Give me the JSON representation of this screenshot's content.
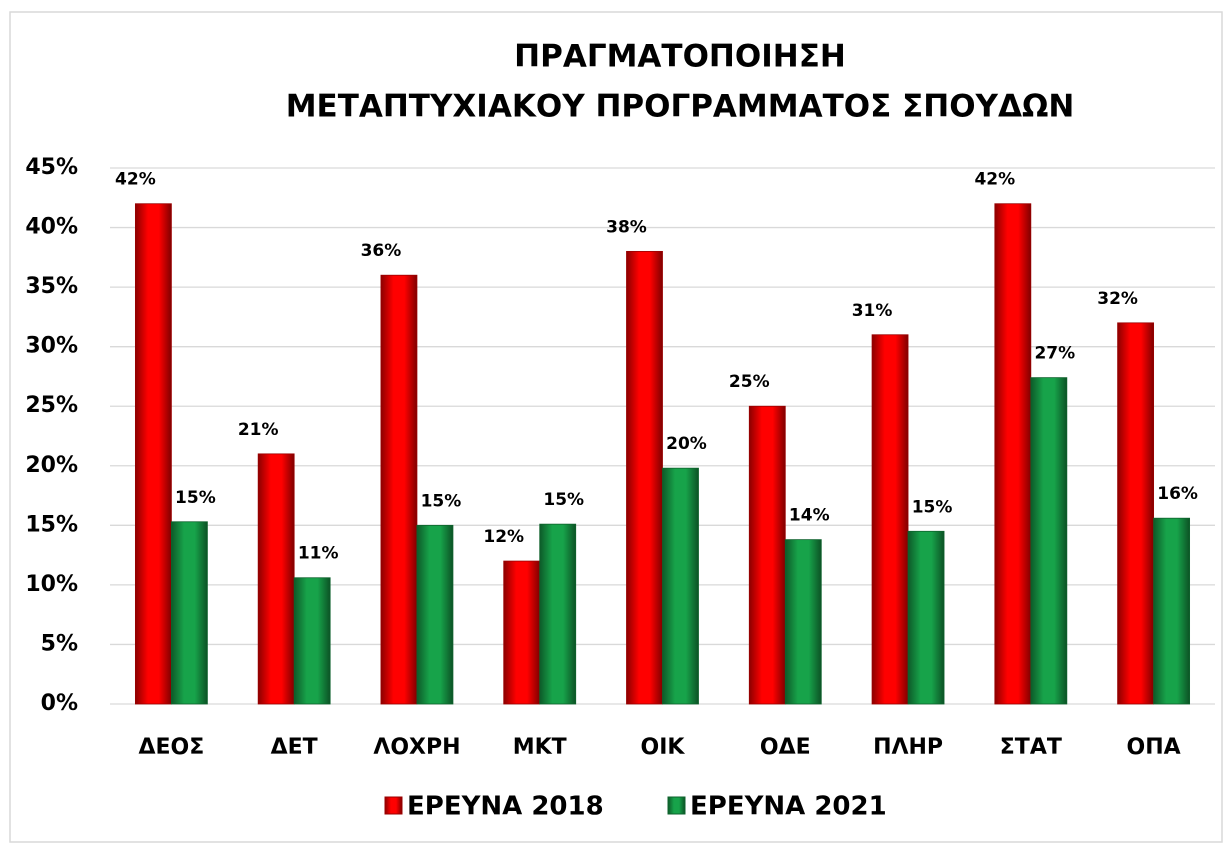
{
  "chart_data": {
    "type": "bar",
    "title": [
      "ΠΡΑΓΜΑΤΟΠΟΙΗΣΗ",
      "ΜΕΤΑΠΤΥΧΙΑΚΟΥ ΠΡΟΓΡΑΜΜΑΤΟΣ ΣΠΟΥΔΩΝ"
    ],
    "categories": [
      "ΔΕΟΣ",
      "ΔΕΤ",
      "ΛΟΧΡΗ",
      "ΜΚΤ",
      "ΟΙΚ",
      "ΟΔΕ",
      "ΠΛΗΡ",
      "ΣΤΑΤ",
      "ΟΠΑ"
    ],
    "series": [
      {
        "name": "ΕΡΕΥΝΑ 2018",
        "color": "#ff0000",
        "values": [
          42,
          21,
          36,
          12,
          38,
          25,
          31,
          42,
          32
        ],
        "value_labels": [
          "42%",
          "21%",
          "36%",
          "12%",
          "38%",
          "25%",
          "31%",
          "42%",
          "32%"
        ]
      },
      {
        "name": "ΕΡΕΥΝΑ 2021",
        "color": "#17a34a",
        "values": [
          15.3,
          10.6,
          15.0,
          15.1,
          19.8,
          13.8,
          14.5,
          27.4,
          15.6
        ],
        "value_labels": [
          "15%",
          "11%",
          "15%",
          "15%",
          "20%",
          "14%",
          "15%",
          "27%",
          "16%"
        ]
      }
    ],
    "ylim": [
      0,
      45
    ],
    "yticks": [
      {
        "value": 0,
        "label": "0%"
      },
      {
        "value": 5,
        "label": "5%"
      },
      {
        "value": 10,
        "label": "10%"
      },
      {
        "value": 15,
        "label": "15%"
      },
      {
        "value": 20,
        "label": "20%"
      },
      {
        "value": 25,
        "label": "25%"
      },
      {
        "value": 30,
        "label": "30%"
      },
      {
        "value": 35,
        "label": "35%"
      },
      {
        "value": 40,
        "label": "40%"
      },
      {
        "value": 45,
        "label": "45%"
      }
    ],
    "grid": true
  }
}
